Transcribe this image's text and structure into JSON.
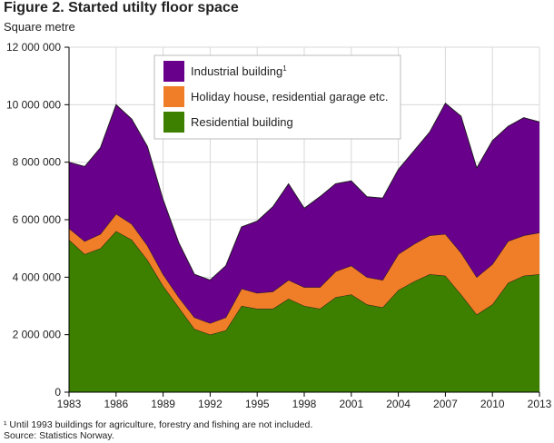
{
  "title": "Figure 2. Started utilty floor space",
  "chart_data": {
    "type": "area",
    "stacked": true,
    "ylabel": "Square metre",
    "ylim": [
      0,
      12000000
    ],
    "yticks": [
      0,
      2000000,
      4000000,
      6000000,
      8000000,
      10000000,
      12000000
    ],
    "ytick_labels": [
      "0",
      "2 000 000",
      "4 000 000",
      "6 000 000",
      "8 000 000",
      "10 000 000",
      "12 000 000"
    ],
    "xlim": [
      1983,
      2013
    ],
    "xticks": [
      1983,
      1986,
      1989,
      1992,
      1995,
      1998,
      2001,
      2004,
      2007,
      2010,
      2013
    ],
    "x": [
      1983,
      1984,
      1985,
      1986,
      1987,
      1988,
      1989,
      1990,
      1991,
      1992,
      1993,
      1994,
      1995,
      1996,
      1997,
      1998,
      1999,
      2000,
      2001,
      2002,
      2003,
      2004,
      2005,
      2006,
      2007,
      2008,
      2009,
      2010,
      2011,
      2012,
      2013
    ],
    "grid": true,
    "legend_position": "top-center",
    "series": [
      {
        "name": "Residential building",
        "color": "#3d8000",
        "values": [
          5300000,
          4800000,
          5000000,
          5600000,
          5300000,
          4600000,
          3700000,
          2950000,
          2200000,
          2000000,
          2150000,
          3000000,
          2900000,
          2900000,
          3250000,
          3000000,
          2900000,
          3300000,
          3400000,
          3050000,
          2950000,
          3550000,
          3850000,
          4100000,
          4050000,
          3400000,
          2700000,
          3050000,
          3800000,
          4050000,
          4100000
        ]
      },
      {
        "name": "Holiday house, residential garage etc.",
        "color": "#f07d28",
        "values": [
          400000,
          450000,
          500000,
          600000,
          550000,
          500000,
          400000,
          350000,
          400000,
          400000,
          450000,
          600000,
          550000,
          600000,
          650000,
          650000,
          750000,
          900000,
          1000000,
          950000,
          950000,
          1250000,
          1300000,
          1350000,
          1450000,
          1450000,
          1300000,
          1400000,
          1450000,
          1400000,
          1450000
        ]
      },
      {
        "name": "Industrial building",
        "name_sup": "1",
        "color": "#68008c",
        "values": [
          2300000,
          2600000,
          3000000,
          3800000,
          3650000,
          3450000,
          2600000,
          1900000,
          1500000,
          1500000,
          1800000,
          2150000,
          2500000,
          2950000,
          3350000,
          2750000,
          3150000,
          3050000,
          2950000,
          2800000,
          2850000,
          2950000,
          3250000,
          3600000,
          4550000,
          4750000,
          3800000,
          4300000,
          4000000,
          4100000,
          3850000
        ]
      }
    ]
  },
  "footnote": "¹ Until 1993 buildings for agriculture, forestry and fishing are not included.",
  "source": "Source: Statistics Norway."
}
